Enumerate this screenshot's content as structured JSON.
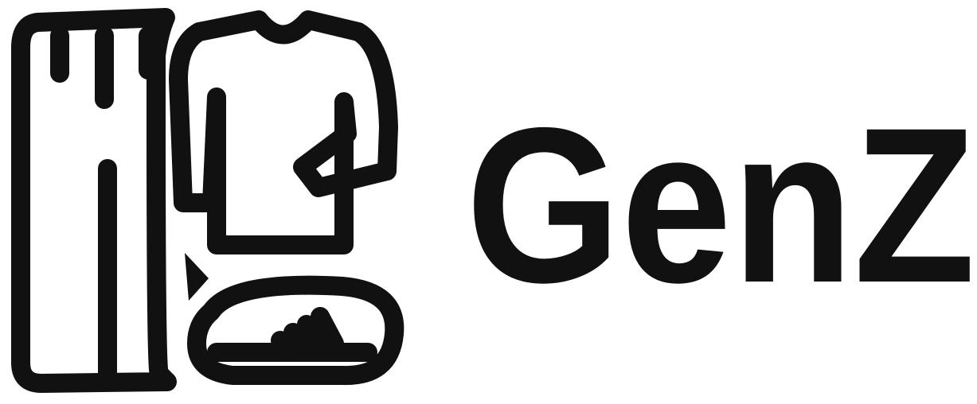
{
  "logo": {
    "text": "GenZ"
  }
}
